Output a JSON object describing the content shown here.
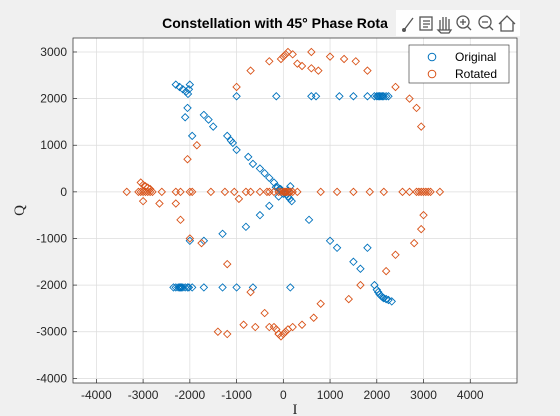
{
  "chart_data": {
    "type": "scatter",
    "title": "Constellation with 45° Phase Rota",
    "xlabel": "I",
    "ylabel": "Q",
    "xlim": [
      -4500,
      5000
    ],
    "ylim": [
      -4100,
      3300
    ],
    "xticks": [
      -4000,
      -3000,
      -2000,
      -1000,
      0,
      1000,
      2000,
      3000,
      4000
    ],
    "yticks": [
      -4000,
      -3000,
      -2000,
      -1000,
      0,
      1000,
      2000,
      3000
    ],
    "grid": true,
    "legend": "top-right",
    "series": [
      {
        "name": "Original",
        "color": "#0072BD",
        "x": [
          -2300,
          -2220,
          -2150,
          -2080,
          -2040,
          -2020,
          -2000,
          -2050,
          -2100,
          -1950,
          -1700,
          -1600,
          -1500,
          -1200,
          -1120,
          -1080,
          -1000,
          -750,
          -650,
          -500,
          -400,
          -300,
          -200,
          -120,
          -60,
          -20,
          20,
          60,
          100,
          140,
          180,
          -160,
          -80,
          -1000,
          -150,
          600,
          700,
          1200,
          1500,
          1800,
          1950,
          2000,
          2030,
          2060,
          2090,
          2120,
          2150,
          2200,
          2250,
          -2000,
          -1700,
          -1300,
          -800,
          -500,
          -300,
          -100,
          0,
          50,
          100,
          150,
          550,
          1000,
          1150,
          1500,
          1650,
          1800,
          1950,
          2000,
          2030,
          2060,
          2090,
          2120,
          2150,
          2200,
          2250,
          2320,
          -2350,
          -2300,
          -2250,
          -2220,
          -2200,
          -2180,
          -2150,
          -2100,
          -2050,
          -2020,
          -1950,
          -1700,
          -1300,
          -1000,
          -650,
          150
        ],
        "y": [
          2300,
          2250,
          2200,
          2150,
          2100,
          2200,
          2300,
          1800,
          1600,
          1200,
          1650,
          1550,
          1400,
          1200,
          1100,
          1050,
          900,
          750,
          600,
          500,
          400,
          300,
          200,
          100,
          60,
          20,
          -20,
          -60,
          -100,
          -150,
          -200,
          100,
          60,
          2050,
          2050,
          2050,
          2050,
          2050,
          2050,
          2050,
          2050,
          2050,
          2050,
          2050,
          2050,
          2050,
          2050,
          2050,
          2050,
          -1050,
          -1050,
          -900,
          -750,
          -500,
          -300,
          -100,
          -40,
          -20,
          30,
          120,
          -600,
          -1050,
          -1200,
          -1500,
          -1650,
          -1200,
          -2000,
          -2100,
          -2150,
          -2200,
          -2230,
          -2260,
          -2280,
          -2300,
          -2320,
          -2350,
          -2050,
          -2050,
          -2050,
          -2050,
          -2050,
          -2050,
          -2050,
          -2050,
          -2050,
          -2050,
          -2050,
          -2050,
          -2050,
          -2050,
          -2050,
          -2050
        ]
      },
      {
        "name": "Rotated",
        "color": "#D95319",
        "x": [
          -3350,
          -3100,
          -3050,
          -3000,
          -2950,
          -2900,
          -2850,
          -2800,
          -2600,
          -2300,
          -2200,
          -2000,
          -1950,
          -1550,
          -1250,
          -1050,
          -800,
          -700,
          -500,
          -350,
          -300,
          -200,
          -100,
          -50,
          0,
          20,
          50,
          80,
          120,
          150,
          200,
          300,
          800,
          1150,
          1500,
          1850,
          2150,
          2550,
          2700,
          2850,
          2900,
          2950,
          3000,
          3050,
          3100,
          3150,
          3350,
          -3050,
          -3000,
          -2950,
          -2900,
          -2850,
          -2650,
          -2200,
          -2000,
          -1750,
          -1200,
          -700,
          -400,
          -200,
          -100,
          -1400,
          -1200,
          -850,
          -600,
          -300,
          -150,
          -100,
          -50,
          0,
          50,
          100,
          200,
          400,
          650,
          800,
          1400,
          1650,
          2200,
          2400,
          2800,
          2950,
          3000,
          600,
          1000,
          1300,
          1550,
          1800,
          2400,
          2700,
          2850,
          2950,
          -2050,
          -1850,
          -1000,
          -700,
          -300,
          -50,
          0,
          50,
          100,
          200,
          300,
          400,
          600,
          750,
          -3000,
          -2300,
          -950
        ],
        "y": [
          0,
          0,
          0,
          0,
          0,
          0,
          0,
          0,
          0,
          0,
          0,
          0,
          0,
          0,
          0,
          0,
          0,
          0,
          0,
          0,
          0,
          0,
          0,
          0,
          0,
          0,
          0,
          0,
          0,
          0,
          0,
          0,
          0,
          0,
          0,
          0,
          0,
          0,
          0,
          0,
          0,
          0,
          0,
          0,
          0,
          0,
          0,
          200,
          150,
          120,
          90,
          60,
          -250,
          -600,
          -1000,
          -1100,
          -1550,
          -2150,
          -2600,
          -2900,
          -3050,
          -3000,
          -3050,
          -2850,
          -2900,
          -2900,
          -2950,
          -3050,
          -3100,
          -3050,
          -3000,
          -2950,
          -2900,
          -2850,
          -2700,
          -2400,
          -2300,
          -2000,
          -1700,
          -1350,
          -1100,
          -800,
          -500,
          3000,
          2900,
          2850,
          2800,
          2600,
          2250,
          2000,
          1800,
          1400,
          700,
          1000,
          2250,
          2600,
          2800,
          2850,
          2900,
          2950,
          3000,
          2950,
          2750,
          2700,
          2650,
          2600,
          -200,
          -250,
          -150
        ]
      }
    ]
  }
}
